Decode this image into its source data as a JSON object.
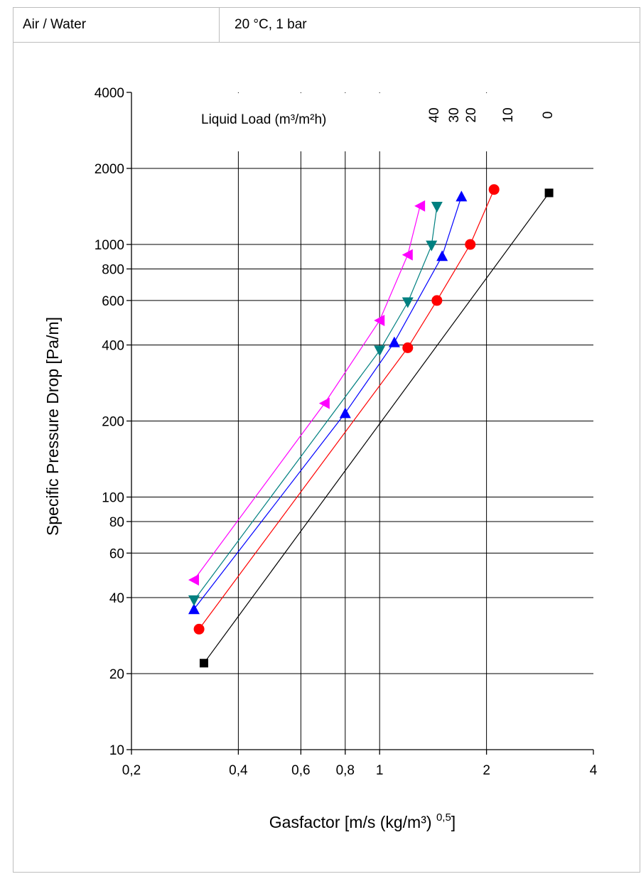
{
  "header": {
    "medium": "Air / Water",
    "conditions": "20 °C, 1 bar"
  },
  "colors": {
    "grid": "#000000",
    "frame": "#bdbdbd",
    "series_0": "#000000",
    "series_10": "#ff0000",
    "series_20": "#0000ff",
    "series_30": "#008080",
    "series_40": "#ff00ff"
  },
  "chart_data": {
    "type": "scatter",
    "xlabel": "Gasfactor [m/s (kg/m³) ",
    "xlabel_sup": "0,5",
    "xlabel_end": "]",
    "ylabel": "Specific Pressure Drop [Pa/m]",
    "xscale": "log",
    "yscale": "log",
    "xlim": [
      0.2,
      4
    ],
    "ylim": [
      10,
      4000
    ],
    "grid": true,
    "xticks": [
      {
        "value": 0.2,
        "label": "0,2"
      },
      {
        "value": 0.4,
        "label": "0,4"
      },
      {
        "value": 0.6,
        "label": "0,6"
      },
      {
        "value": 0.8,
        "label": "0,8"
      },
      {
        "value": 1,
        "label": "1"
      },
      {
        "value": 2,
        "label": "2"
      },
      {
        "value": 4,
        "label": "4"
      }
    ],
    "yticks": [
      {
        "value": 10,
        "label": "10"
      },
      {
        "value": 20,
        "label": "20"
      },
      {
        "value": 40,
        "label": "40"
      },
      {
        "value": 60,
        "label": "60"
      },
      {
        "value": 80,
        "label": "80"
      },
      {
        "value": 100,
        "label": "100"
      },
      {
        "value": 200,
        "label": "200"
      },
      {
        "value": 400,
        "label": "400"
      },
      {
        "value": 600,
        "label": "600"
      },
      {
        "value": 800,
        "label": "800"
      },
      {
        "value": 1000,
        "label": "1000"
      },
      {
        "value": 2000,
        "label": "2000"
      },
      {
        "value": 4000,
        "label": "4000"
      }
    ],
    "legend_title": "Liquid Load (m³/m²h)",
    "legend_placement": "top",
    "legend_labels": [
      "40",
      "30",
      "20",
      "10",
      "0"
    ],
    "series": [
      {
        "name": "0",
        "marker": "square",
        "color": "#000000",
        "x": [
          0.32,
          3.0
        ],
        "y": [
          22,
          1600
        ]
      },
      {
        "name": "10",
        "marker": "circle",
        "color": "#ff0000",
        "x": [
          0.31,
          1.2,
          1.45,
          1.8,
          2.1
        ],
        "y": [
          30,
          390,
          600,
          1000,
          1650
        ]
      },
      {
        "name": "20",
        "marker": "triangle-up",
        "color": "#0000ff",
        "x": [
          0.3,
          0.8,
          1.1,
          1.5,
          1.7
        ],
        "y": [
          36,
          215,
          410,
          900,
          1550
        ]
      },
      {
        "name": "30",
        "marker": "triangle-down",
        "color": "#008080",
        "x": [
          0.3,
          1.0,
          1.2,
          1.4,
          1.45
        ],
        "y": [
          39,
          380,
          590,
          990,
          1410
        ]
      },
      {
        "name": "40",
        "marker": "triangle-left",
        "color": "#ff00ff",
        "x": [
          0.3,
          0.7,
          1.0,
          1.2,
          1.3
        ],
        "y": [
          47,
          235,
          500,
          910,
          1420
        ]
      }
    ]
  }
}
